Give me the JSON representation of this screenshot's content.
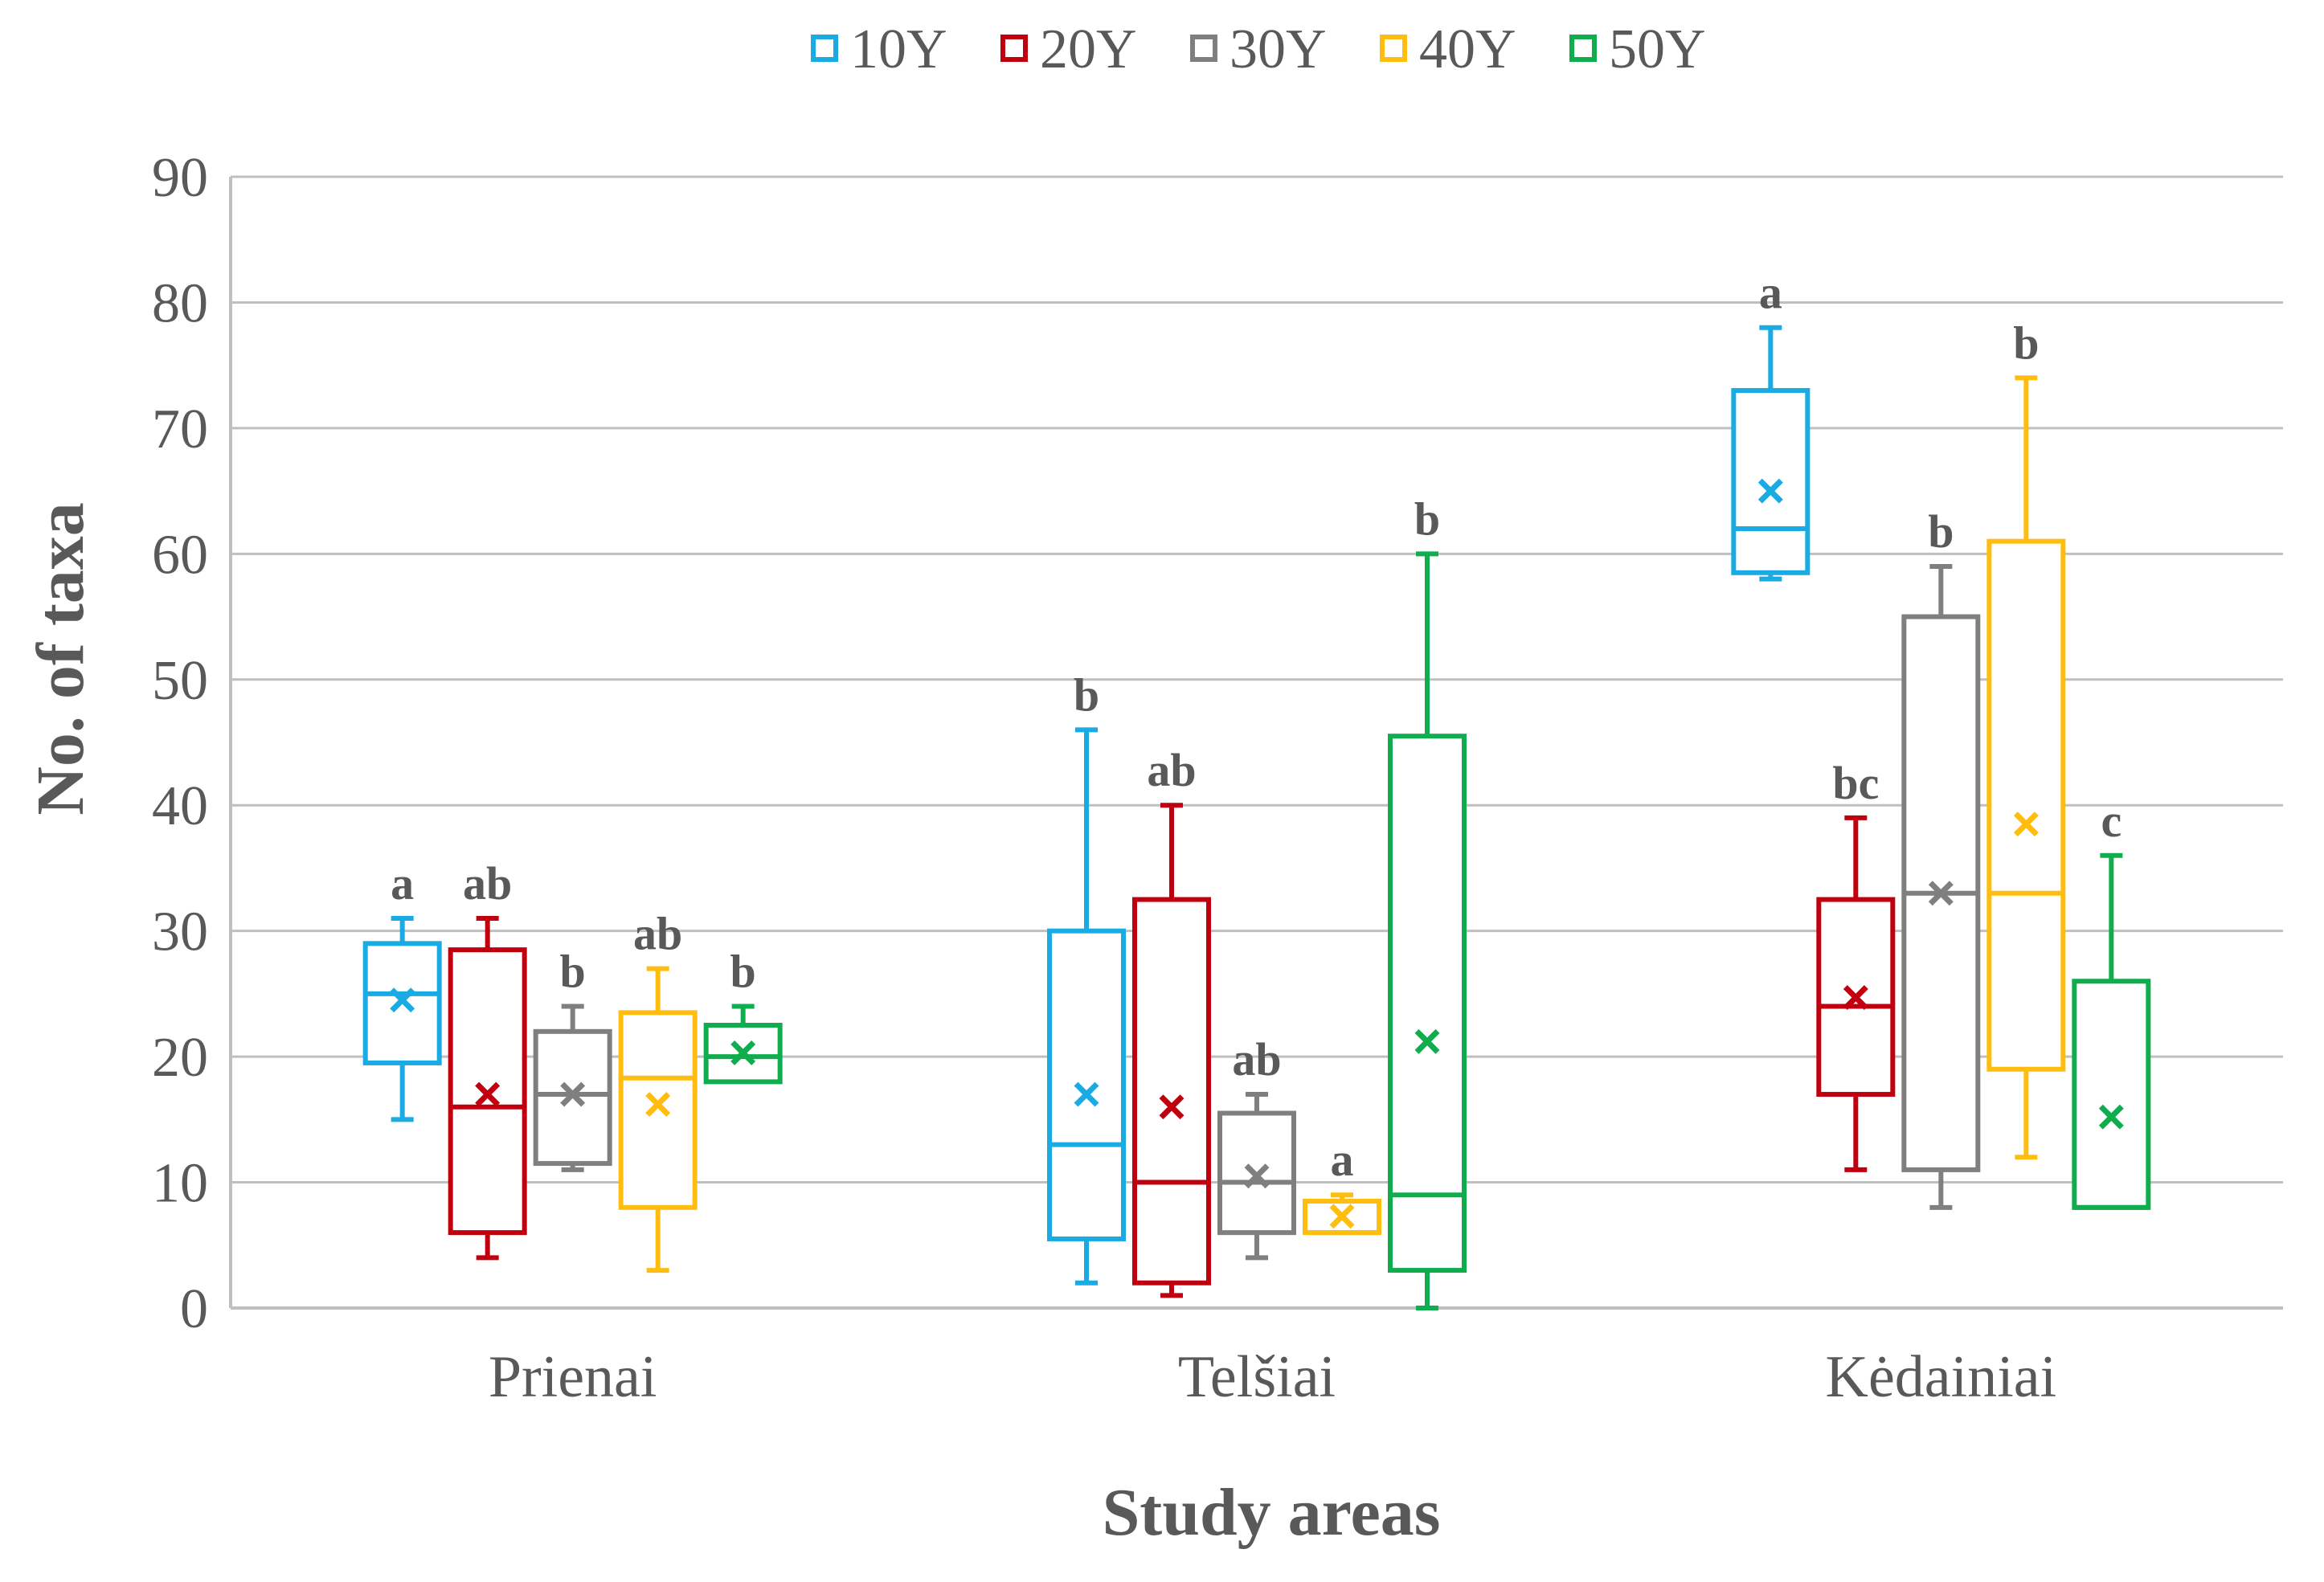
{
  "chart_data": {
    "type": "box",
    "xlabel": "Study areas",
    "ylabel": "No. of taxa",
    "ylim": [
      0,
      90
    ],
    "yticks": [
      0,
      10,
      20,
      30,
      40,
      50,
      60,
      70,
      80,
      90
    ],
    "grid": "horizontal",
    "legend_position": "top-center",
    "categories": [
      "Prienai",
      "Telšiai",
      "Kėdainiai"
    ],
    "series": [
      {
        "name": "10Y",
        "color": "#1aabe3",
        "boxes": [
          {
            "min": 15,
            "q1": 19.5,
            "median": 25,
            "q3": 29,
            "max": 31,
            "mean": 24.5,
            "letter": "a"
          },
          {
            "min": 2,
            "q1": 5.5,
            "median": 13,
            "q3": 30,
            "max": 46,
            "mean": 17,
            "letter": "b"
          },
          {
            "min": 58,
            "q1": 58.5,
            "median": 62,
            "q3": 73,
            "max": 78,
            "mean": 65,
            "letter": "a"
          }
        ]
      },
      {
        "name": "20Y",
        "color": "#c0000f",
        "boxes": [
          {
            "min": 4,
            "q1": 6,
            "median": 16,
            "q3": 28.5,
            "max": 31,
            "mean": 17,
            "letter": "ab"
          },
          {
            "min": 1,
            "q1": 2,
            "median": 10,
            "q3": 32.5,
            "max": 40,
            "mean": 16,
            "letter": "ab"
          },
          {
            "min": 11,
            "q1": 17,
            "median": 24,
            "q3": 32.5,
            "max": 39,
            "mean": 24.7,
            "letter": "bc"
          }
        ]
      },
      {
        "name": "30Y",
        "color": "#7f7f7f",
        "boxes": [
          {
            "min": 11,
            "q1": 11.5,
            "median": 17,
            "q3": 22,
            "max": 24,
            "mean": 17,
            "letter": "b"
          },
          {
            "min": 4,
            "q1": 6,
            "median": 10,
            "q3": 15.5,
            "max": 17,
            "mean": 10.5,
            "letter": "ab"
          },
          {
            "min": 8,
            "q1": 11,
            "median": 33,
            "q3": 55,
            "max": 59,
            "mean": 33,
            "letter": "b"
          }
        ]
      },
      {
        "name": "40Y",
        "color": "#ffbd0f",
        "boxes": [
          {
            "min": 3,
            "q1": 8,
            "median": 18.3,
            "q3": 23.5,
            "max": 27,
            "mean": 16.2,
            "letter": "ab"
          },
          {
            "min": 6,
            "q1": 6,
            "median": 6,
            "q3": 8.5,
            "max": 9,
            "mean": 7.3,
            "letter": "a"
          },
          {
            "min": 12,
            "q1": 19,
            "median": 33,
            "q3": 61,
            "max": 74,
            "mean": 38.5,
            "letter": "b"
          }
        ]
      },
      {
        "name": "50Y",
        "color": "#10ad4e",
        "boxes": [
          {
            "min": 18,
            "q1": 18,
            "median": 20,
            "q3": 22.5,
            "max": 24,
            "mean": 20.3,
            "letter": "b"
          },
          {
            "min": 0,
            "q1": 3,
            "median": 9,
            "q3": 45.5,
            "max": 60,
            "mean": 21.2,
            "letter": "b"
          },
          {
            "min": 8,
            "q1": 8,
            "median": 8,
            "q3": 26,
            "max": 36,
            "mean": 15.2,
            "letter": "c"
          }
        ]
      }
    ]
  }
}
